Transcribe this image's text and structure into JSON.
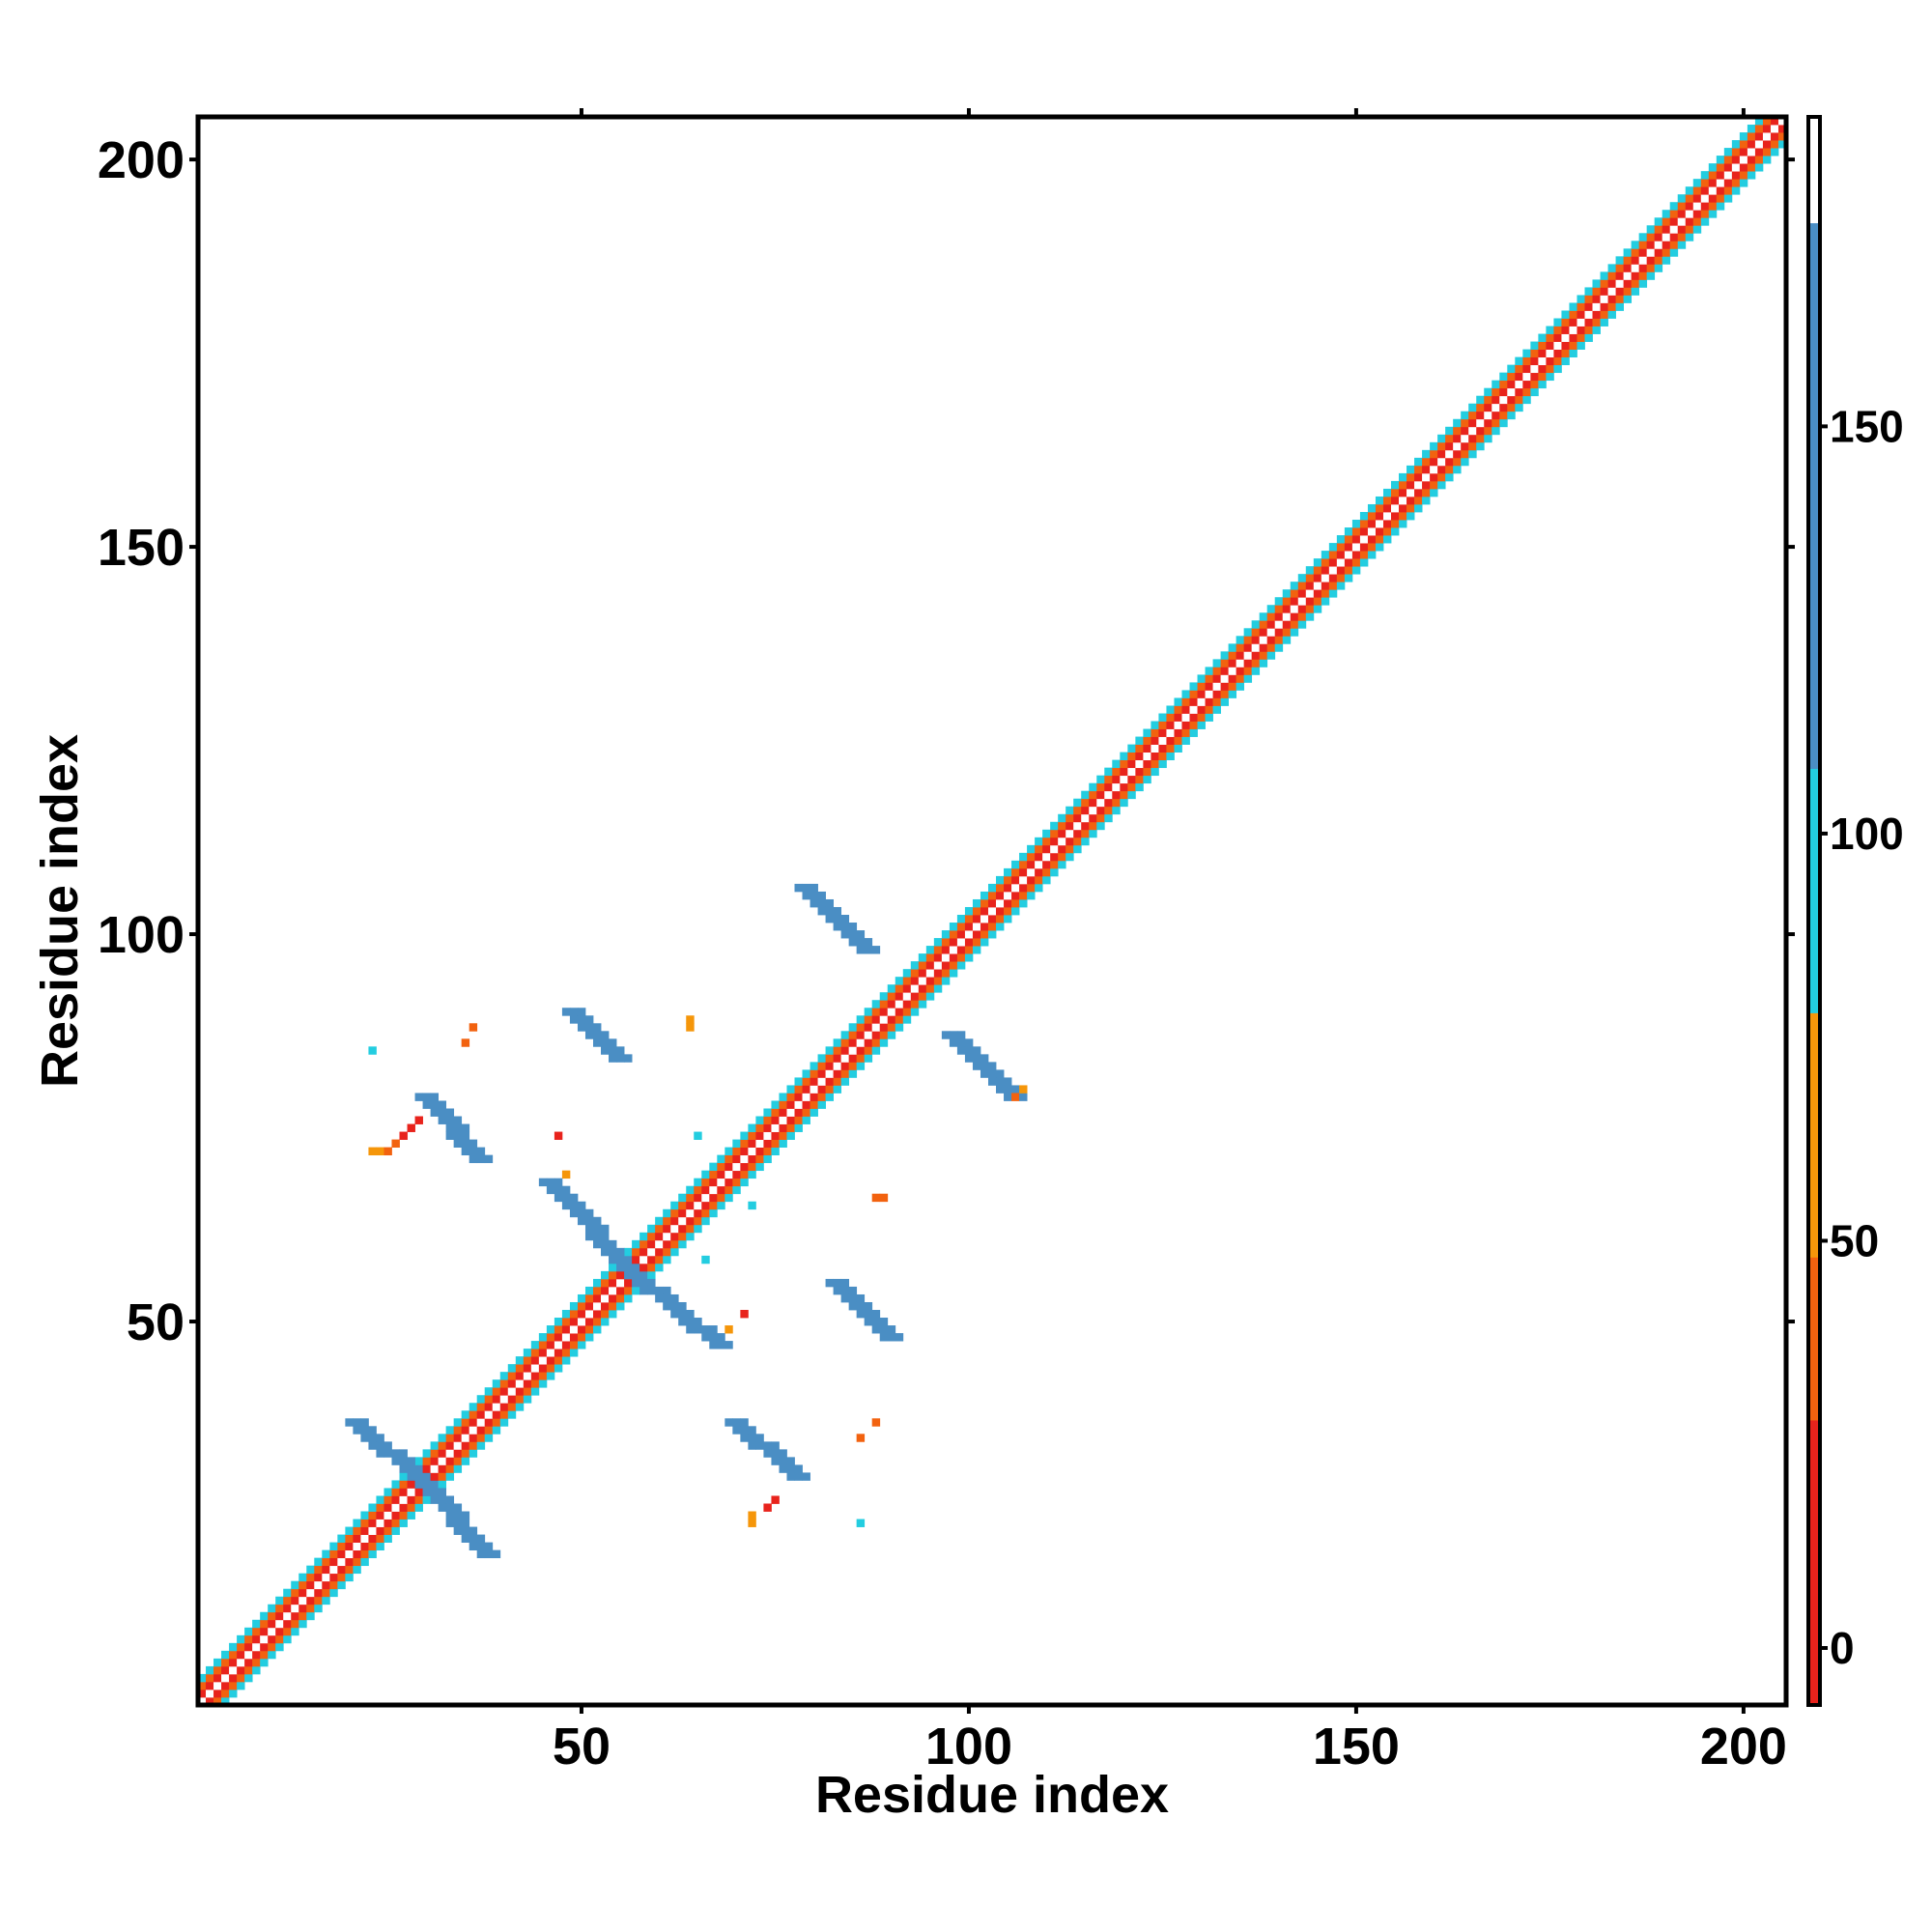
{
  "chart_data": {
    "type": "heatmap",
    "title": "",
    "xlabel": "Residue index",
    "ylabel": "Residue index",
    "xlim": [
      0.5,
      205.5
    ],
    "ylim": [
      0.5,
      205.5
    ],
    "xticks": [
      50,
      100,
      150,
      200
    ],
    "yticks": [
      50,
      100,
      150,
      200
    ],
    "grid": false,
    "background_color": "#ffffff",
    "colorbar": {
      "range": [
        -7,
        188
      ],
      "ticks": [
        0,
        50,
        100,
        150
      ],
      "bins": [
        {
          "from": -7,
          "to": 28,
          "color": "#e8231c"
        },
        {
          "from": 28,
          "to": 48,
          "color": "#f2620f"
        },
        {
          "from": 48,
          "to": 78,
          "color": "#f5960a"
        },
        {
          "from": 78,
          "to": 108,
          "color": "#23cde0"
        },
        {
          "from": 108,
          "to": 175,
          "color": "#4a8ec4"
        },
        {
          "from": 175,
          "to": 188,
          "color": "#ffffff"
        }
      ]
    },
    "diagonal_band": {
      "from": 1,
      "to": 205,
      "offset_values": [
        {
          "offset": 0,
          "value": 188
        },
        {
          "offset": 1,
          "value": 10
        },
        {
          "offset": 2,
          "value": 38
        },
        {
          "offset": 3,
          "value": 90
        }
      ]
    },
    "segments": [
      {
        "from": [
          21,
          37
        ],
        "to": [
          30,
          29
        ],
        "value": 140,
        "half_width": 1
      },
      {
        "from": [
          30,
          29
        ],
        "to": [
          38,
          20
        ],
        "value": 140,
        "half_width": 1
      },
      {
        "from": [
          46,
          68
        ],
        "to": [
          57,
          56
        ],
        "value": 140,
        "half_width": 1
      },
      {
        "from": [
          57,
          56
        ],
        "to": [
          68,
          47
        ],
        "value": 140,
        "half_width": 1
      },
      {
        "from": [
          30,
          79
        ],
        "to": [
          37,
          71
        ],
        "value": 140,
        "half_width": 1
      },
      {
        "from": [
          49,
          90
        ],
        "to": [
          55,
          84
        ],
        "value": 140,
        "half_width": 1
      },
      {
        "from": [
          79,
          106
        ],
        "to": [
          87,
          98
        ],
        "value": 140,
        "half_width": 1
      },
      {
        "from": [
          98,
          87
        ],
        "to": [
          106,
          79
        ],
        "value": 140,
        "half_width": 1
      },
      {
        "from": [
          70,
          37
        ],
        "to": [
          78,
          30
        ],
        "value": 140,
        "half_width": 1
      },
      {
        "from": [
          83,
          55
        ],
        "to": [
          90,
          48
        ],
        "value": 140,
        "half_width": 1
      }
    ],
    "cells": [
      {
        "x": 23,
        "y": 85,
        "value": 95
      },
      {
        "x": 36,
        "y": 88,
        "value": 40
      },
      {
        "x": 35,
        "y": 86,
        "value": 40
      },
      {
        "x": 23,
        "y": 72,
        "value": 65
      },
      {
        "x": 24,
        "y": 72,
        "value": 65
      },
      {
        "x": 25,
        "y": 72,
        "value": 40
      },
      {
        "x": 26,
        "y": 73,
        "value": 40
      },
      {
        "x": 27,
        "y": 74,
        "value": 10
      },
      {
        "x": 28,
        "y": 75,
        "value": 10
      },
      {
        "x": 29,
        "y": 76,
        "value": 10
      },
      {
        "x": 48,
        "y": 69,
        "value": 65
      },
      {
        "x": 47,
        "y": 74,
        "value": 10
      },
      {
        "x": 64,
        "y": 88,
        "value": 65
      },
      {
        "x": 64,
        "y": 89,
        "value": 65
      },
      {
        "x": 65,
        "y": 74,
        "value": 95
      },
      {
        "x": 66,
        "y": 58,
        "value": 95
      },
      {
        "x": 72,
        "y": 65,
        "value": 95
      },
      {
        "x": 88,
        "y": 66,
        "value": 40
      },
      {
        "x": 89,
        "y": 66,
        "value": 40
      },
      {
        "x": 71,
        "y": 51,
        "value": 10
      },
      {
        "x": 69,
        "y": 49,
        "value": 65
      },
      {
        "x": 75,
        "y": 27,
        "value": 10
      },
      {
        "x": 74,
        "y": 26,
        "value": 10
      },
      {
        "x": 72,
        "y": 25,
        "value": 65
      },
      {
        "x": 72,
        "y": 24,
        "value": 65
      },
      {
        "x": 86,
        "y": 35,
        "value": 40
      },
      {
        "x": 88,
        "y": 37,
        "value": 40
      },
      {
        "x": 86,
        "y": 24,
        "value": 95
      },
      {
        "x": 106,
        "y": 79,
        "value": 40
      },
      {
        "x": 107,
        "y": 80,
        "value": 65
      }
    ]
  }
}
